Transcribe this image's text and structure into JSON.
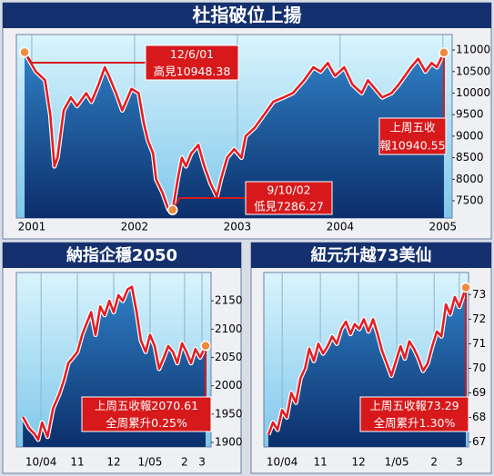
{
  "chart_data": [
    {
      "type": "line",
      "title": "杜指破位上揚",
      "color": "#e31e24",
      "x": [
        2000.93,
        2001.04,
        2001.13,
        2001.18,
        2001.22,
        2001.25,
        2001.31,
        2001.38,
        2001.44,
        2001.53,
        2001.58,
        2001.65,
        2001.71,
        2001.75,
        2001.82,
        2001.88,
        2001.97,
        2002.04,
        2002.09,
        2002.13,
        2002.18,
        2002.21,
        2002.27,
        2002.33,
        2002.37,
        2002.42,
        2002.46,
        2002.5,
        2002.55,
        2002.62,
        2002.68,
        2002.74,
        2002.8,
        2002.84,
        2002.9,
        2002.97,
        2003.04,
        2003.08,
        2003.17,
        2003.26,
        2003.35,
        2003.45,
        2003.54,
        2003.65,
        2003.74,
        2003.81,
        2003.88,
        2003.95,
        2004.04,
        2004.12,
        2004.21,
        2004.27,
        2004.34,
        2004.41,
        2004.5,
        2004.57,
        2004.63,
        2004.69,
        2004.76,
        2004.83,
        2004.89,
        2004.94,
        2005.01
      ],
      "values": [
        10948.38,
        10500,
        10300,
        9500,
        8300,
        8500,
        9600,
        9900,
        9700,
        10000,
        9800,
        10200,
        10600,
        10400,
        10000,
        9600,
        10100,
        10000,
        9300,
        8900,
        8600,
        8000,
        7700,
        7300,
        7286.27,
        8000,
        8500,
        8300,
        8600,
        8800,
        8300,
        7900,
        7600,
        8000,
        8500,
        8700,
        8500,
        9000,
        9200,
        9500,
        9800,
        9900,
        10000,
        10300,
        10600,
        10500,
        10700,
        10400,
        10600,
        10200,
        10000,
        10300,
        10100,
        9900,
        10000,
        10200,
        10400,
        10600,
        10800,
        10500,
        10700,
        10600,
        10940.55
      ],
      "xlim": [
        2000.85,
        2005.09
      ],
      "xticks": [
        2001,
        2002,
        2003,
        2004,
        2005
      ],
      "ylim": [
        7100,
        11360
      ],
      "yticks": [
        7500,
        8000,
        8500,
        9000,
        9500,
        10000,
        10500,
        11000
      ],
      "annotations": [
        [
          "12/6/01",
          "高見10948.38"
        ],
        [
          "上周五收",
          "報10940.55"
        ],
        [
          "9/10/02",
          "低見7286.27"
        ]
      ]
    },
    {
      "type": "line",
      "title": "納指企穩2050",
      "color": "#e31e24",
      "x": [
        -0.5,
        -0.33,
        -0.18,
        -0.08,
        0.03,
        0.18,
        0.33,
        0.5,
        0.63,
        0.75,
        0.88,
        1.0,
        1.13,
        1.25,
        1.38,
        1.5,
        1.63,
        1.75,
        1.88,
        2.0,
        2.13,
        2.25,
        2.38,
        2.5,
        2.63,
        2.75,
        2.88,
        3.0,
        3.13,
        3.25,
        3.38,
        3.5,
        3.63,
        3.75,
        3.88,
        4.0,
        4.13,
        4.25,
        4.38,
        4.53
      ],
      "values": [
        1945,
        1925,
        1915,
        1905,
        1935,
        1910,
        1960,
        1985,
        2010,
        2040,
        2050,
        2060,
        2090,
        2110,
        2130,
        2090,
        2140,
        2125,
        2150,
        2130,
        2160,
        2150,
        2170,
        2175,
        2130,
        2080,
        2060,
        2090,
        2070,
        2030,
        2050,
        2070,
        2060,
        2040,
        2075,
        2060,
        2040,
        2065,
        2050,
        2070.61
      ],
      "xlim": [
        -0.68,
        4.68
      ],
      "xticks": [
        {
          "value": 0,
          "label": "10/04"
        },
        {
          "value": 1,
          "label": "11"
        },
        {
          "value": 2,
          "label": "12"
        },
        {
          "value": 3,
          "label": "1/05"
        },
        {
          "value": 3.95,
          "label": "2"
        },
        {
          "value": 4.43,
          "label": "3"
        }
      ],
      "ylim": [
        1892,
        2200
      ],
      "yticks": [
        1900,
        1950,
        2000,
        2050,
        2100,
        2150
      ],
      "annotations": [
        [
          "上周五收報2070.61",
          "全周累升0.25%"
        ]
      ]
    },
    {
      "type": "line",
      "title": "紐元升越73美仙",
      "color": "#e31e24",
      "x": [
        -0.36,
        -0.24,
        -0.12,
        0,
        0.12,
        0.24,
        0.36,
        0.48,
        0.6,
        0.71,
        0.83,
        0.95,
        1.07,
        1.19,
        1.31,
        1.43,
        1.55,
        1.67,
        1.79,
        1.9,
        2.02,
        2.14,
        2.26,
        2.38,
        2.5,
        2.62,
        2.74,
        2.86,
        2.98,
        3.1,
        3.21,
        3.33,
        3.45,
        3.57,
        3.69,
        3.81,
        3.93,
        4.05,
        4.17,
        4.29,
        4.4,
        4.52,
        4.64,
        4.81
      ],
      "values": [
        67.3,
        67.8,
        67.5,
        68.3,
        68.0,
        69.0,
        68.6,
        69.6,
        70.0,
        70.8,
        70.3,
        71.0,
        70.6,
        70.9,
        71.3,
        71.0,
        71.6,
        71.9,
        71.4,
        71.8,
        71.6,
        72.0,
        71.5,
        72.0,
        71.4,
        70.7,
        70.2,
        69.7,
        70.3,
        70.9,
        70.4,
        71.1,
        70.8,
        70.4,
        69.9,
        70.2,
        70.9,
        71.5,
        71.3,
        72.6,
        72.2,
        72.9,
        72.5,
        73.29
      ],
      "xlim": [
        -0.48,
        4.88
      ],
      "xticks": [
        {
          "value": 0,
          "label": "10/04"
        },
        {
          "value": 1,
          "label": "11"
        },
        {
          "value": 2,
          "label": "12"
        },
        {
          "value": 3,
          "label": "1/05"
        },
        {
          "value": 3.98,
          "label": "2"
        },
        {
          "value": 4.64,
          "label": "3"
        }
      ],
      "ylim": [
        66.8,
        73.9
      ],
      "yticks": [
        67,
        68,
        69,
        70,
        71,
        72,
        73
      ],
      "annotations": [
        [
          "上周五收報73.29",
          "全周累升1.30%"
        ]
      ]
    }
  ]
}
